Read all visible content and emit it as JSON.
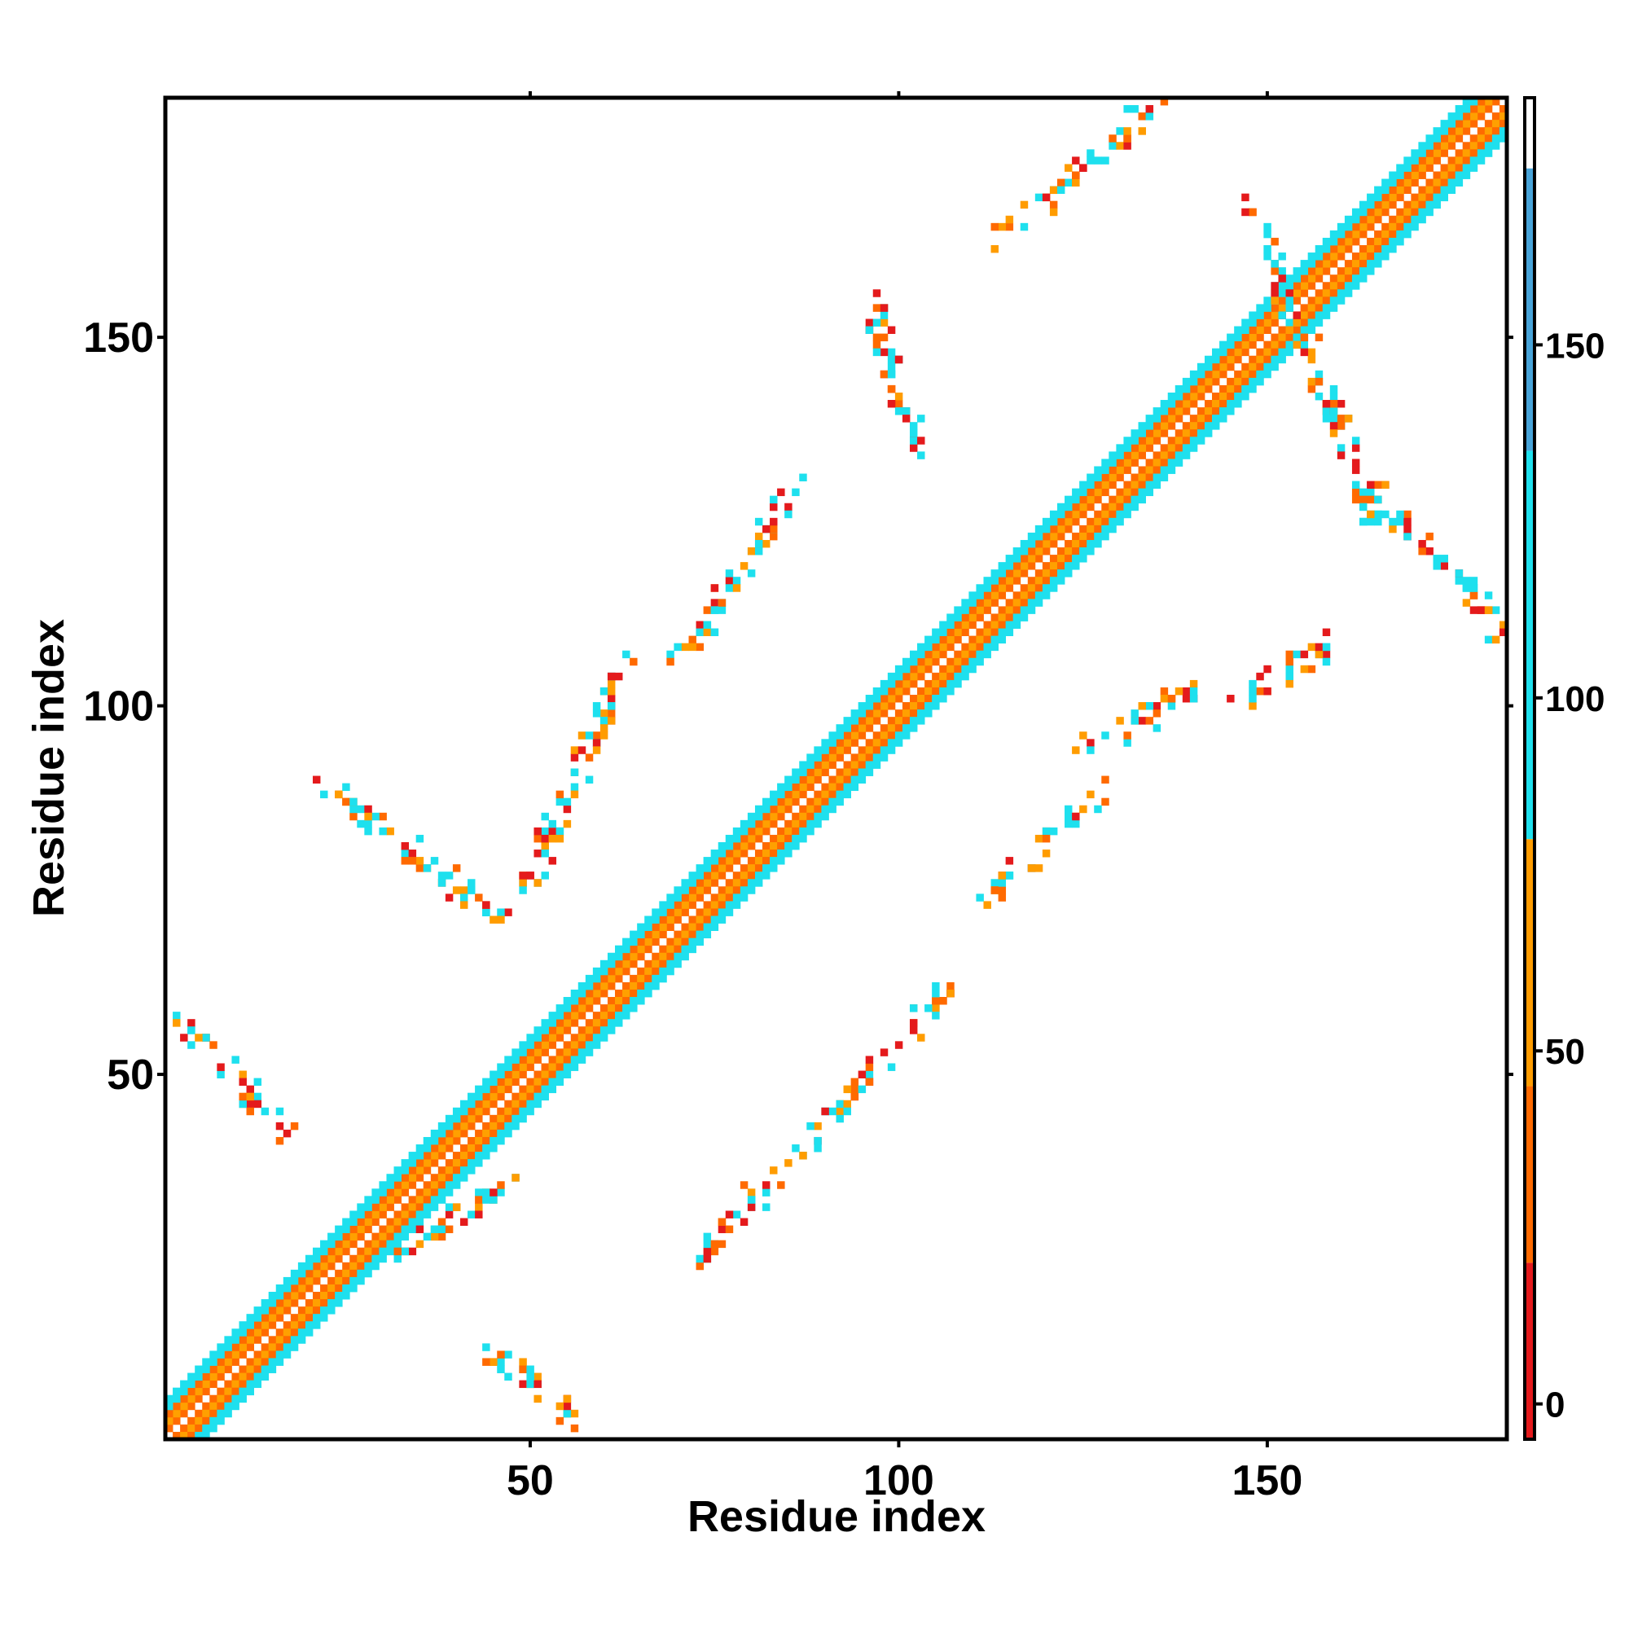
{
  "chart_data": {
    "type": "heatmap",
    "title": "",
    "xlabel": "Residue index",
    "ylabel": "Residue index",
    "xlim": [
      1,
      182
    ],
    "ylim": [
      1,
      182
    ],
    "x_ticks": [
      "50",
      "100",
      "150"
    ],
    "y_ticks": [
      "50",
      "100",
      "150"
    ],
    "grid": false,
    "legend": "colorbar at right",
    "colorbar": {
      "range": [
        -5,
        185
      ],
      "ticks": [
        "0",
        "50",
        "100",
        "150"
      ],
      "bands": [
        {
          "from": -5,
          "to": 20,
          "color": "#e41a1c"
        },
        {
          "from": 20,
          "to": 45,
          "color": "#ff6a00"
        },
        {
          "from": 45,
          "to": 80,
          "color": "#ff9c00"
        },
        {
          "from": 80,
          "to": 135,
          "color": "#1ee0ee"
        },
        {
          "from": 135,
          "to": 175,
          "color": "#47a3d8"
        },
        {
          "from": 175,
          "to": 185,
          "color": "#ffffff"
        }
      ]
    },
    "bands_diagonal": [
      {
        "offset": 1,
        "color": "#ff6a00"
      },
      {
        "offset": 2,
        "color": "#ffa000"
      },
      {
        "offset": 3,
        "color": "#ff6a00"
      },
      {
        "offset": 4,
        "color": "#1ee0ee"
      },
      {
        "offset": 5,
        "color": "#1ee0ee"
      }
    ],
    "contact_clusters": [
      {
        "x": [
          42,
          57
        ],
        "y": [
          3,
          14
        ],
        "color_mix": "mixed"
      },
      {
        "x": [
          31,
          48
        ],
        "y": [
          25,
          36
        ],
        "color_mix": "mixed"
      },
      {
        "x": [
          3,
          17
        ],
        "y": [
          42,
          57
        ],
        "color_mix": "mixed"
      },
      {
        "x": [
          21,
          46
        ],
        "y": [
          71,
          90
        ],
        "color_mix": "mixed"
      },
      {
        "x": [
          49,
          63
        ],
        "y": [
          74,
          107
        ],
        "color_mix": "mixed"
      },
      {
        "x": [
          73,
          108
        ],
        "y": [
          25,
          63
        ],
        "color_mix": "mixed"
      },
      {
        "x": [
          70,
          86
        ],
        "y": [
          106,
          130
        ],
        "color_mix": "mixed"
      },
      {
        "x": [
          96,
          103
        ],
        "y": [
          134,
          156
        ],
        "color_mix": "mixed"
      },
      {
        "x": [
          113,
          136
        ],
        "y": [
          163,
          182
        ],
        "color_mix": "mixed"
      },
      {
        "x": [
          112,
          129
        ],
        "y": [
          74,
          89
        ],
        "color_mix": "mixed"
      },
      {
        "x": [
          125,
          140
        ],
        "y": [
          94,
          102
        ],
        "color_mix": "mixed"
      },
      {
        "x": [
          146,
          159
        ],
        "y": [
          100,
          109
        ],
        "color_mix": "mixed"
      },
      {
        "x": [
          162,
          182
        ],
        "y": [
          110,
          132
        ],
        "color_mix": "mixed"
      },
      {
        "x": [
          147,
          165
        ],
        "y": [
          125,
          168
        ],
        "color_mix": "mixed"
      }
    ]
  }
}
